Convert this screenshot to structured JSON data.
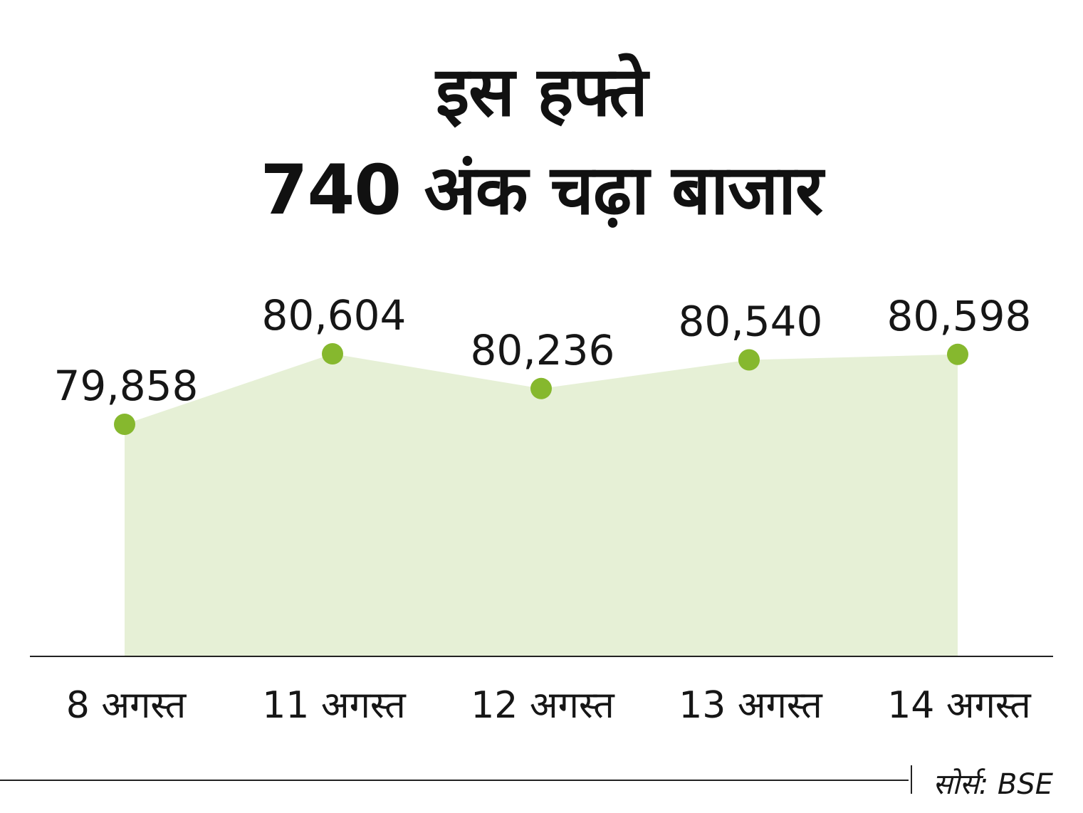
{
  "chart_data": {
    "type": "area",
    "title_lines": [
      "इस हफ्ते",
      "740 अंक चढ़ा बाजार"
    ],
    "categories": [
      "8 अगस्त",
      "11 अगस्त",
      "12 अगस्त",
      "13 अगस्त",
      "14 अगस्त"
    ],
    "values": [
      79858,
      80604,
      80236,
      80540,
      80598
    ],
    "value_labels": [
      "79,858",
      "80,604",
      "80,236",
      "80,540",
      "80,598"
    ],
    "source": "सोर्स: BSE",
    "colors": {
      "fill": "#e6f0d6",
      "point": "#86b82e",
      "text": "#161616",
      "axis": "#222222"
    }
  }
}
